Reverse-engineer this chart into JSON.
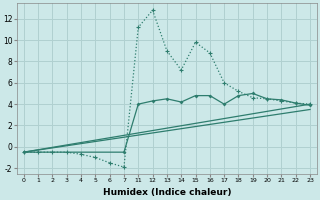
{
  "xlabel": "Humidex (Indice chaleur)",
  "background_color": "#cce8e8",
  "grid_color": "#b0d0d0",
  "line_color": "#2e7d6e",
  "ylim": [
    -2.5,
    13.5
  ],
  "yticks": [
    -2,
    0,
    2,
    4,
    6,
    8,
    10,
    12
  ],
  "x_labels": [
    "0",
    "1",
    "2",
    "3",
    "4",
    "5",
    "6",
    "7",
    "11",
    "12",
    "13",
    "14",
    "15",
    "16",
    "17",
    "18",
    "19",
    "20",
    "21",
    "22",
    "23"
  ],
  "series": [
    {
      "xi": [
        0,
        1,
        2,
        3,
        4,
        5,
        6,
        7,
        8,
        9,
        10,
        11,
        12,
        13,
        14,
        15,
        16,
        17,
        18,
        19,
        20
      ],
      "y": [
        -0.5,
        -0.5,
        -0.5,
        -0.5,
        -0.7,
        -1.0,
        -1.5,
        -1.9,
        11.2,
        12.8,
        9.0,
        7.2,
        9.8,
        8.8,
        6.0,
        5.2,
        4.6,
        4.5,
        4.3,
        4.1,
        4.0
      ],
      "dotted": true
    },
    {
      "xi": [
        0,
        7,
        8,
        9,
        10,
        11,
        12,
        13,
        14,
        15,
        16,
        17,
        18,
        19,
        20
      ],
      "y": [
        -0.5,
        -0.5,
        4.0,
        4.3,
        4.5,
        4.2,
        4.8,
        4.8,
        4.0,
        4.8,
        5.0,
        4.5,
        4.4,
        4.1,
        3.9
      ],
      "dotted": false
    },
    {
      "xi": [
        0,
        20
      ],
      "y": [
        -0.5,
        3.5
      ],
      "dotted": false
    },
    {
      "xi": [
        0,
        20
      ],
      "y": [
        -0.5,
        4.0
      ],
      "dotted": false
    }
  ]
}
